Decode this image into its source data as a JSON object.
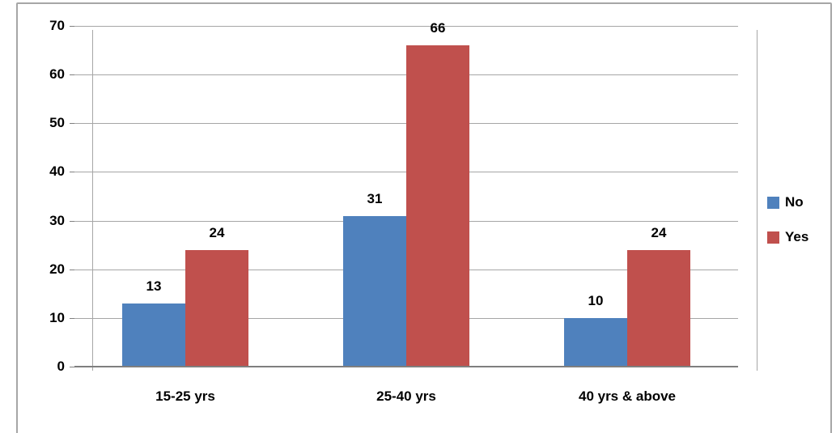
{
  "chart_data": {
    "type": "bar",
    "title": "",
    "categories": [
      "15-25 yrs",
      "25-40 yrs",
      "40 yrs & above"
    ],
    "series": [
      {
        "name": "No",
        "color": "#4F81BD",
        "values": [
          13,
          31,
          10
        ]
      },
      {
        "name": "Yes",
        "color": "#C0504D",
        "values": [
          24,
          66,
          24
        ]
      }
    ],
    "ylim": [
      0,
      70
    ],
    "ytick_interval": 10,
    "yticks": [
      0,
      10,
      20,
      30,
      40,
      50,
      60,
      70
    ],
    "grid": true,
    "data_labels": true,
    "legend_position": "right"
  },
  "colors": {
    "frame_border": "#A6A6A6",
    "plot_border": "#A6A6A6",
    "gridline": "#A6A6A6",
    "axis_line": "#7F7F7F",
    "background": "#FFFFFF",
    "text": "#000000"
  }
}
